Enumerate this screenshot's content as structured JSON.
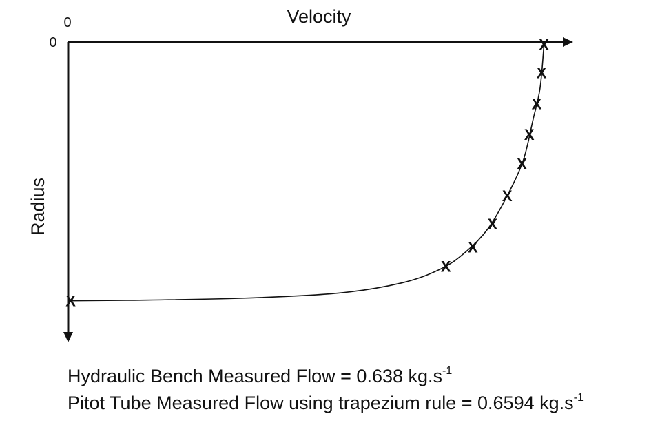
{
  "chart_data": {
    "type": "line",
    "xlabel": "Velocity",
    "ylabel": "Radius",
    "x_origin_label": "0",
    "y_origin_label": "0",
    "xlim": [
      0,
      10
    ],
    "ylim": [
      0,
      10
    ],
    "y_inverted": true,
    "markers": [
      {
        "x": 9.7,
        "y": 0.1
      },
      {
        "x": 9.65,
        "y": 1.2
      },
      {
        "x": 9.55,
        "y": 2.4
      },
      {
        "x": 9.4,
        "y": 3.6
      },
      {
        "x": 9.25,
        "y": 4.75
      },
      {
        "x": 8.95,
        "y": 6.0
      },
      {
        "x": 8.65,
        "y": 7.1
      },
      {
        "x": 8.25,
        "y": 8.0
      },
      {
        "x": 7.7,
        "y": 8.75
      },
      {
        "x": 0.05,
        "y": 10.1
      }
    ],
    "curve": [
      {
        "x": 9.7,
        "y": 0.1
      },
      {
        "x": 9.62,
        "y": 1.8
      },
      {
        "x": 9.48,
        "y": 3.0
      },
      {
        "x": 9.28,
        "y": 4.6
      },
      {
        "x": 8.95,
        "y": 6.0
      },
      {
        "x": 8.55,
        "y": 7.3
      },
      {
        "x": 8.1,
        "y": 8.2
      },
      {
        "x": 7.6,
        "y": 8.85
      },
      {
        "x": 6.8,
        "y": 9.4
      },
      {
        "x": 5.5,
        "y": 9.8
      },
      {
        "x": 3.5,
        "y": 10.0
      },
      {
        "x": 1.2,
        "y": 10.08
      },
      {
        "x": 0.0,
        "y": 10.1
      }
    ],
    "marker_symbol": "X"
  },
  "notes": {
    "line1_text": "Hydraulic Bench Measured Flow = 0.638 kg.s",
    "line1_sup": "-1",
    "line2_text": "Pitot Tube Measured Flow using trapezium rule = 0.6594 kg.s",
    "line2_sup": "-1"
  }
}
